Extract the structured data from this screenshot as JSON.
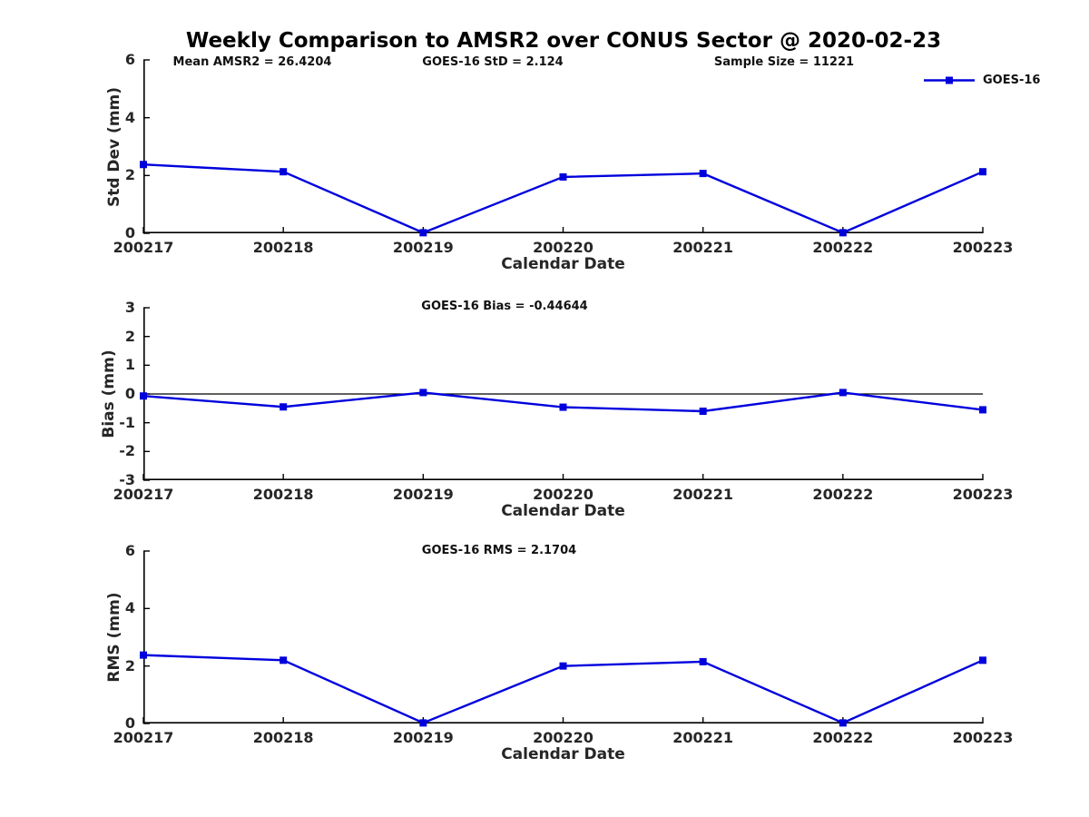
{
  "title": "Weekly Comparison to AMSR2 over CONUS Sector @ 2020-02-23",
  "annotations": {
    "mean_amsr2": "Mean AMSR2 = 26.4204",
    "goes16_std": "GOES-16 StD = 2.124",
    "sample_size": "Sample Size = 11221",
    "goes16_bias": "GOES-16 Bias  = -0.44644",
    "goes16_rms": "GOES-16 RMS = 2.1704"
  },
  "legend": {
    "label": "GOES-16"
  },
  "colors": {
    "line": "#0000dd",
    "axis": "#000000",
    "tick_text": "#262626",
    "annotation_text": "#111111",
    "zero_line": "#000000"
  },
  "chart_data": [
    {
      "type": "line",
      "categories": [
        "200217",
        "200218",
        "200219",
        "200220",
        "200221",
        "200222",
        "200223"
      ],
      "series": [
        {
          "name": "GOES-16",
          "values": [
            2.38,
            2.13,
            0.02,
            1.95,
            2.07,
            0.02,
            2.13
          ]
        }
      ],
      "xlabel": "Calendar Date",
      "ylabel": "Std Dev (mm)",
      "ylim": [
        0,
        6
      ],
      "yticks": [
        0,
        2,
        4,
        6
      ],
      "grid": false,
      "zero_line": false,
      "legend_position": "top-right-outside",
      "marker": "square"
    },
    {
      "type": "line",
      "categories": [
        "200217",
        "200218",
        "200219",
        "200220",
        "200221",
        "200222",
        "200223"
      ],
      "series": [
        {
          "name": "GOES-16",
          "values": [
            -0.07,
            -0.45,
            0.05,
            -0.46,
            -0.6,
            0.05,
            -0.55
          ]
        }
      ],
      "xlabel": "Calendar Date",
      "ylabel": "Bias (mm)",
      "ylim": [
        -3,
        3
      ],
      "yticks": [
        3,
        2,
        1,
        0,
        -1,
        -2,
        -3
      ],
      "grid": false,
      "zero_line": true,
      "legend_position": "none",
      "marker": "square"
    },
    {
      "type": "line",
      "categories": [
        "200217",
        "200218",
        "200219",
        "200220",
        "200221",
        "200222",
        "200223"
      ],
      "series": [
        {
          "name": "GOES-16",
          "values": [
            2.38,
            2.2,
            0.02,
            2.0,
            2.15,
            0.02,
            2.2
          ]
        }
      ],
      "xlabel": "Calendar Date",
      "ylabel": "RMS (mm)",
      "ylim": [
        0,
        6
      ],
      "yticks": [
        0,
        2,
        4,
        6
      ],
      "grid": false,
      "zero_line": false,
      "legend_position": "none",
      "marker": "square"
    }
  ]
}
